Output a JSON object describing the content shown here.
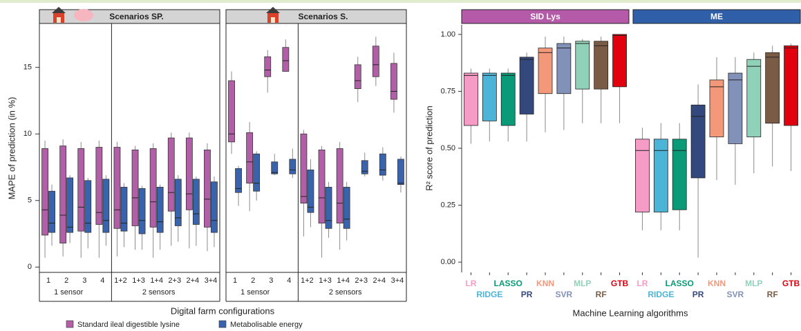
{
  "chart_data": [
    {
      "type": "box",
      "ylabel": "MAPE of prediction (in %)",
      "xlabel": "Digital farm configurations",
      "ylim": [
        -0.4,
        18.3
      ],
      "yticks": [
        0,
        5,
        10,
        15
      ],
      "series": [
        {
          "name": "Standard ileal digestible lysine",
          "color": "#b15fa6"
        },
        {
          "name": "Metabolisable energy",
          "color": "#3a63ad"
        }
      ],
      "facets": [
        {
          "title": "Scenarios SP.",
          "groups": [
            {
              "label": "1 sensor",
              "categories": [
                "1",
                "2",
                "3",
                "4"
              ],
              "series_values": [
                [
                  [
                    0.7,
                    2.4,
                    4.3,
                    8.9,
                    9.5
                  ],
                  [
                    0.8,
                    1.8,
                    3.9,
                    9.1,
                    9.6
                  ],
                  [
                    0.7,
                    2.7,
                    4.5,
                    8.9,
                    9.4
                  ],
                  [
                    0.7,
                    3.2,
                    4.1,
                    9.0,
                    9.5
                  ]
                ],
                [
                  [
                    1.6,
                    2.6,
                    3.3,
                    5.7,
                    6.2
                  ],
                  [
                    1.8,
                    2.6,
                    3.0,
                    6.7,
                    6.9
                  ],
                  [
                    1.4,
                    2.6,
                    3.3,
                    6.5,
                    6.7
                  ],
                  [
                    1.6,
                    2.6,
                    3.5,
                    6.6,
                    6.9
                  ]
                ]
              ]
            },
            {
              "label": "2 sensors",
              "categories": [
                "1+2",
                "1+3",
                "1+4",
                "2+3",
                "2+4",
                "3+4"
              ],
              "series_values": [
                [
                  [
                    0.8,
                    2.9,
                    4.3,
                    9.0,
                    9.4
                  ],
                  [
                    1.3,
                    3.1,
                    5.2,
                    8.8,
                    9.1
                  ],
                  [
                    0.7,
                    3.0,
                    4.9,
                    8.9,
                    9.3
                  ],
                  [
                    1.6,
                    4.2,
                    5.6,
                    9.7,
                    10.1
                  ],
                  [
                    1.4,
                    4.3,
                    5.5,
                    9.7,
                    10.1
                  ],
                  [
                    1.2,
                    3.0,
                    5.1,
                    8.8,
                    9.3
                  ]
                ],
                [
                  [
                    1.5,
                    2.7,
                    3.3,
                    6.0,
                    6.3
                  ],
                  [
                    1.3,
                    2.5,
                    3.5,
                    5.9,
                    6.1
                  ],
                  [
                    1.3,
                    2.6,
                    3.4,
                    6.0,
                    6.2
                  ],
                  [
                    1.9,
                    3.1,
                    3.7,
                    6.6,
                    6.9
                  ],
                  [
                    1.6,
                    3.2,
                    4.0,
                    6.6,
                    6.8
                  ],
                  [
                    1.5,
                    2.6,
                    3.5,
                    6.4,
                    6.8
                  ]
                ]
              ]
            }
          ]
        },
        {
          "title": "Scenarios S.",
          "groups": [
            {
              "label": "1 sensor",
              "categories": [
                "1",
                "2",
                "3",
                "4"
              ],
              "series_values": [
                [
                  [
                    8.5,
                    9.4,
                    10.0,
                    14.0,
                    14.7
                  ],
                  [
                    4.2,
                    6.3,
                    7.9,
                    10.1,
                    10.9
                  ],
                  [
                    13.1,
                    14.3,
                    14.8,
                    15.8,
                    16.3
                  ],
                  [
                    14.7,
                    14.7,
                    15.5,
                    16.5,
                    17.1
                  ]
                ],
                [
                  [
                    4.6,
                    5.6,
                    5.9,
                    7.4,
                    7.6
                  ],
                  [
                    5.0,
                    5.7,
                    6.3,
                    8.5,
                    8.7
                  ],
                  [
                    6.9,
                    7.0,
                    7.1,
                    7.9,
                    8.5
                  ],
                  [
                    6.7,
                    7.0,
                    7.3,
                    8.1,
                    8.9
                  ]
                ]
              ]
            },
            {
              "label": "2 sensors",
              "categories": [
                "1+2",
                "1+3",
                "1+4",
                "2+3",
                "2+4",
                "3+4"
              ],
              "series_values": [
                [
                  [
                    2.3,
                    4.8,
                    5.3,
                    10.0,
                    10.3
                  ],
                  [
                    0.7,
                    3.3,
                    5.2,
                    8.8,
                    9.1
                  ],
                  [
                    1.3,
                    3.3,
                    4.8,
                    8.9,
                    9.4
                  ],
                  [
                    12.4,
                    13.4,
                    14.0,
                    15.2,
                    15.8
                  ],
                  [
                    13.6,
                    14.3,
                    15.2,
                    16.6,
                    17.3
                  ],
                  [
                    11.6,
                    12.6,
                    13.2,
                    15.3,
                    16.1
                  ]
                ],
                [
                  [
                    3.0,
                    4.1,
                    4.5,
                    7.3,
                    8.1
                  ],
                  [
                    2.2,
                    2.9,
                    3.5,
                    6.0,
                    6.4
                  ],
                  [
                    2.0,
                    2.9,
                    3.6,
                    6.0,
                    6.4
                  ],
                  [
                    6.8,
                    7.0,
                    7.2,
                    8.0,
                    8.6
                  ],
                  [
                    6.5,
                    6.9,
                    7.3,
                    8.5,
                    9.0
                  ],
                  [
                    5.6,
                    6.2,
                    6.3,
                    8.1,
                    8.3
                  ]
                ]
              ]
            }
          ]
        }
      ]
    },
    {
      "type": "box",
      "ylabel": "R² score of prediction",
      "xlabel": "Machine Learning algorithms",
      "ylim": [
        -0.045,
        1.042
      ],
      "yticks": [
        {
          "value": 0,
          "label": "0.00"
        },
        {
          "value": 0.25,
          "label": "0.25"
        },
        {
          "value": 0.5,
          "label": "0.50"
        },
        {
          "value": 0.75,
          "label": "0.75"
        },
        {
          "value": 1,
          "label": "1.00"
        }
      ],
      "categories": [
        "LR",
        "RIDGE",
        "LASSO",
        "PR",
        "KNN",
        "SVR",
        "MLP",
        "RF",
        "GTB"
      ],
      "colors": [
        "#f59bc5",
        "#4bb4d7",
        "#0a9a78",
        "#33487c",
        "#f4987a",
        "#8291b8",
        "#8fd1b9",
        "#7a5b45",
        "#e2000f"
      ],
      "facets": [
        {
          "title": "SID Lys",
          "color": "#b45aa8",
          "values": [
            [
              0.52,
              0.6,
              0.82,
              0.83,
              0.85
            ],
            [
              0.53,
              0.62,
              0.82,
              0.83,
              0.85
            ],
            [
              0.53,
              0.6,
              0.82,
              0.83,
              0.85
            ],
            [
              0.53,
              0.65,
              0.89,
              0.9,
              0.92
            ],
            [
              0.57,
              0.74,
              0.92,
              0.94,
              0.99
            ],
            [
              0.58,
              0.74,
              0.94,
              0.96,
              0.99
            ],
            [
              0.61,
              0.76,
              0.96,
              0.97,
              0.98
            ],
            [
              0.61,
              0.76,
              0.95,
              0.97,
              0.99
            ],
            [
              0.61,
              0.77,
              0.995,
              1.0,
              1.0
            ]
          ]
        },
        {
          "title": "ME",
          "color": "#2f5fa8",
          "values": [
            [
              0.14,
              0.22,
              0.49,
              0.54,
              0.59
            ],
            [
              0.14,
              0.22,
              0.49,
              0.54,
              0.61
            ],
            [
              0.14,
              0.23,
              0.49,
              0.54,
              0.61
            ],
            [
              0.02,
              0.37,
              0.64,
              0.69,
              0.78
            ],
            [
              0.36,
              0.55,
              0.77,
              0.8,
              0.9
            ],
            [
              0.34,
              0.52,
              0.8,
              0.83,
              0.9
            ],
            [
              0.39,
              0.55,
              0.86,
              0.89,
              0.92
            ],
            [
              0.42,
              0.61,
              0.9,
              0.92,
              0.95
            ],
            [
              0.4,
              0.6,
              0.94,
              0.95,
              0.96
            ]
          ]
        }
      ]
    }
  ]
}
